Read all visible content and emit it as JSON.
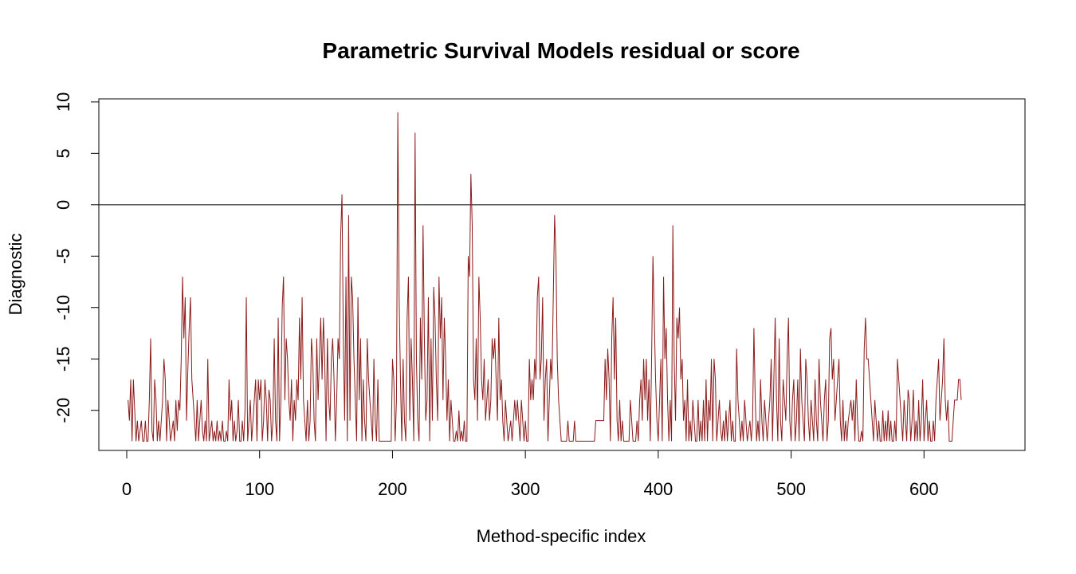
{
  "chart_data": {
    "type": "line",
    "title": "Parametric Survival Models residual or score",
    "xlabel": "Method-specific index",
    "ylabel": "Diagnostic",
    "xlim": [
      -21,
      676
    ],
    "ylim": [
      -23.9,
      10.3
    ],
    "x_ticks": [
      0,
      100,
      200,
      300,
      400,
      500,
      600
    ],
    "y_ticks": [
      -20,
      -15,
      -10,
      -5,
      0,
      5,
      10
    ],
    "reference_line_y": 0,
    "grid": false,
    "legend": "none",
    "series_color": "#8B1A1A",
    "series": [
      {
        "values": [
          -19,
          -21,
          -17,
          -23,
          -17,
          -20,
          -23,
          -21,
          -23,
          -22,
          -21,
          -23,
          -23,
          -21,
          -23,
          -23,
          -19,
          -13,
          -22,
          -23,
          -17,
          -19,
          -23,
          -21,
          -23,
          -21,
          -19,
          -15,
          -17,
          -23,
          -19,
          -21,
          -23,
          -22,
          -21,
          -23,
          -19,
          -22,
          -19,
          -20,
          -15,
          -7,
          -13,
          -9,
          -21,
          -16,
          -12,
          -9,
          -17,
          -19,
          -21,
          -23,
          -19,
          -23,
          -21,
          -19,
          -22,
          -23,
          -21,
          -23,
          -15,
          -23,
          -22,
          -21,
          -23,
          -22,
          -23,
          -21,
          -23,
          -22,
          -23,
          -21,
          -23,
          -23,
          -22,
          -23,
          -17,
          -21,
          -19,
          -23,
          -21,
          -23,
          -22,
          -19,
          -23,
          -23,
          -21,
          -23,
          -20,
          -9,
          -23,
          -21,
          -19,
          -23,
          -21,
          -19,
          -17,
          -23,
          -17,
          -19,
          -17,
          -23,
          -21,
          -17,
          -19,
          -23,
          -18,
          -19,
          -23,
          -21,
          -13,
          -21,
          -23,
          -11,
          -23,
          -19,
          -10,
          -7,
          -19,
          -13,
          -15,
          -19,
          -21,
          -17,
          -23,
          -19,
          -21,
          -17,
          -19,
          -11,
          -17,
          -9,
          -19,
          -21,
          -23,
          -19,
          -23,
          -21,
          -13,
          -15,
          -21,
          -23,
          -13,
          -19,
          -15,
          -11,
          -17,
          -11,
          -15,
          -23,
          -13,
          -19,
          -21,
          -15,
          -13,
          -17,
          -23,
          -19,
          -13,
          -15,
          -3,
          1,
          -13,
          -21,
          -7,
          -23,
          -1,
          -21,
          -7,
          -9,
          -15,
          -19,
          -23,
          -9,
          -19,
          -13,
          -23,
          -17,
          -21,
          -23,
          -13,
          -17,
          -19,
          -21,
          -23,
          -15,
          -21,
          -23,
          -17,
          -23,
          -23,
          -23,
          -23,
          -23,
          -23,
          -23,
          -23,
          -23,
          -23,
          -15,
          -17,
          -23,
          -19,
          9,
          -9,
          -17,
          -23,
          -15,
          -21,
          -23,
          -11,
          -7,
          -21,
          -13,
          -17,
          -23,
          7,
          -15,
          -21,
          -23,
          -11,
          -17,
          -2,
          -13,
          -21,
          -19,
          -9,
          -23,
          -13,
          -21,
          -8,
          -11,
          -17,
          -21,
          -7,
          -13,
          -9,
          -19,
          -11,
          -15,
          -21,
          -17,
          -23,
          -19,
          -21,
          -23,
          -23,
          -22,
          -23,
          -20,
          -23,
          -22,
          -23,
          -21,
          -23,
          -23,
          -5,
          -7,
          3,
          -2,
          -17,
          -19,
          -13,
          -21,
          -7,
          -11,
          -17,
          -19,
          -15,
          -21,
          -19,
          -17,
          -21,
          -19,
          -13,
          -15,
          -13,
          -17,
          -21,
          -11,
          -19,
          -17,
          -21,
          -23,
          -19,
          -21,
          -23,
          -22,
          -21,
          -23,
          -21,
          -19,
          -21,
          -19,
          -21,
          -23,
          -19,
          -21,
          -23,
          -21,
          -23,
          -23,
          -15,
          -19,
          -17,
          -19,
          -15,
          -17,
          -9,
          -7,
          -17,
          -15,
          -9,
          -21,
          -17,
          -15,
          -23,
          -19,
          -15,
          -17,
          -9,
          -1,
          -5,
          -15,
          -19,
          -21,
          -23,
          -23,
          -23,
          -23,
          -23,
          -21,
          -23,
          -23,
          -23,
          -23,
          -21,
          -23,
          -23,
          -23,
          -23,
          -23,
          -23,
          -23,
          -23,
          -23,
          -23,
          -23,
          -23,
          -23,
          -23,
          -23,
          -21,
          -21,
          -21,
          -21,
          -21,
          -21,
          -21,
          -15,
          -19,
          -14,
          -17,
          -23,
          -13,
          -9,
          -17,
          -11,
          -21,
          -23,
          -19,
          -23,
          -21,
          -23,
          -23,
          -23,
          -23,
          -23,
          -19,
          -21,
          -23,
          -23,
          -23,
          -21,
          -23,
          -19,
          -17,
          -21,
          -15,
          -19,
          -15,
          -21,
          -17,
          -23,
          -15,
          -5,
          -11,
          -17,
          -21,
          -23,
          -19,
          -15,
          -23,
          -7,
          -15,
          -12,
          -19,
          -23,
          -19,
          -23,
          -2,
          -15,
          -21,
          -11,
          -13,
          -10,
          -17,
          -15,
          -21,
          -19,
          -23,
          -17,
          -23,
          -21,
          -23,
          -19,
          -21,
          -23,
          -23,
          -19,
          -23,
          -21,
          -23,
          -19,
          -23,
          -17,
          -23,
          -19,
          -21,
          -15,
          -23,
          -15,
          -17,
          -23,
          -21,
          -19,
          -22,
          -23,
          -21,
          -23,
          -20,
          -23,
          -21,
          -19,
          -23,
          -21,
          -23,
          -23,
          -14,
          -19,
          -21,
          -23,
          -21,
          -23,
          -19,
          -21,
          -23,
          -22,
          -21,
          -23,
          -21,
          -12,
          -19,
          -23,
          -21,
          -23,
          -17,
          -21,
          -23,
          -19,
          -21,
          -23,
          -21,
          -19,
          -15,
          -23,
          -17,
          -11,
          -19,
          -23,
          -13,
          -21,
          -23,
          -17,
          -19,
          -21,
          -15,
          -11,
          -21,
          -23,
          -19,
          -17,
          -23,
          -21,
          -17,
          -23,
          -14,
          -19,
          -21,
          -23,
          -15,
          -17,
          -21,
          -23,
          -19,
          -21,
          -23,
          -17,
          -21,
          -23,
          -15,
          -19,
          -21,
          -23,
          -19,
          -17,
          -23,
          -21,
          -13,
          -12,
          -17,
          -15,
          -21,
          -19,
          -17,
          -15,
          -21,
          -23,
          -19,
          -23,
          -21,
          -23,
          -21,
          -20,
          -19,
          -21,
          -19,
          -23,
          -17,
          -21,
          -23,
          -23,
          -22,
          -23,
          -14,
          -11,
          -15,
          -15,
          -17,
          -19,
          -21,
          -23,
          -19,
          -21,
          -23,
          -21,
          -23,
          -23,
          -20,
          -23,
          -21,
          -23,
          -20,
          -23,
          -21,
          -23,
          -23,
          -21,
          -23,
          -15,
          -17,
          -19,
          -21,
          -23,
          -19,
          -21,
          -23,
          -18,
          -19,
          -23,
          -21,
          -18,
          -23,
          -21,
          -23,
          -19,
          -23,
          -21,
          -17,
          -23,
          -21,
          -19,
          -23,
          -21,
          -23,
          -23,
          -21,
          -23,
          -19,
          -17,
          -15,
          -21,
          -19,
          -17,
          -13,
          -19,
          -21,
          -19,
          -23,
          -23,
          -23,
          -21,
          -19,
          -19,
          -19,
          -17,
          -17,
          -19
        ]
      }
    ]
  }
}
